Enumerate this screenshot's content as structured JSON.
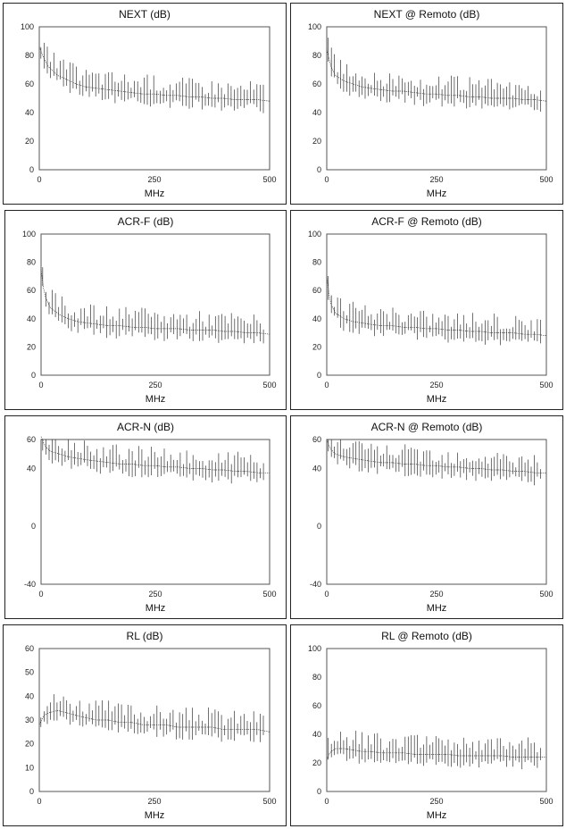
{
  "chart_data": [
    {
      "type": "line",
      "title": "NEXT (dB)",
      "xlabel": "MHz",
      "ylabel": "",
      "xlim": [
        0,
        500
      ],
      "ylim": [
        0,
        100
      ],
      "xticks": [
        "0",
        "250",
        "500"
      ],
      "yticks": [
        "0",
        "20",
        "40",
        "60",
        "80",
        "100"
      ],
      "series": [
        {
          "x": [
            0,
            5,
            10,
            20,
            40,
            60,
            80,
            100,
            125,
            150,
            175,
            200,
            225,
            250,
            275,
            300,
            325,
            350,
            375,
            400,
            425,
            450,
            475,
            500
          ],
          "y": [
            86,
            82,
            78,
            72,
            66,
            63,
            60,
            58,
            57,
            56,
            55,
            54,
            53,
            53,
            52,
            52,
            51,
            51,
            50,
            50,
            49,
            49,
            49,
            48
          ]
        }
      ]
    },
    {
      "type": "line",
      "title": "NEXT @ Remoto (dB)",
      "xlabel": "MHz",
      "ylabel": "",
      "xlim": [
        0,
        500
      ],
      "ylim": [
        0,
        100
      ],
      "xticks": [
        "0",
        "250",
        "500"
      ],
      "yticks": [
        "0",
        "20",
        "40",
        "60",
        "80",
        "100"
      ],
      "series": [
        {
          "x": [
            0,
            5,
            10,
            20,
            40,
            60,
            80,
            100,
            125,
            150,
            175,
            200,
            225,
            250,
            275,
            300,
            325,
            350,
            375,
            400,
            425,
            450,
            475,
            500
          ],
          "y": [
            84,
            78,
            72,
            66,
            62,
            60,
            58,
            57,
            56,
            55,
            55,
            54,
            53,
            53,
            52,
            52,
            51,
            51,
            50,
            50,
            50,
            49,
            49,
            48
          ]
        }
      ]
    },
    {
      "type": "line",
      "title": "ACR-F (dB)",
      "xlabel": "MHz",
      "ylabel": "",
      "xlim": [
        0,
        500
      ],
      "ylim": [
        0,
        100
      ],
      "xticks": [
        "0",
        "250",
        "500"
      ],
      "yticks": [
        "0",
        "20",
        "40",
        "60",
        "80",
        "100"
      ],
      "series": [
        {
          "x": [
            0,
            5,
            10,
            20,
            40,
            60,
            80,
            100,
            125,
            150,
            175,
            200,
            225,
            250,
            275,
            300,
            325,
            350,
            375,
            400,
            425,
            450,
            475,
            500
          ],
          "y": [
            75,
            62,
            55,
            48,
            43,
            40,
            38,
            37,
            36,
            35,
            35,
            34,
            34,
            33,
            33,
            33,
            32,
            32,
            32,
            31,
            31,
            30,
            30,
            29
          ]
        }
      ]
    },
    {
      "type": "line",
      "title": "ACR-F @ Remoto (dB)",
      "xlabel": "MHz",
      "ylabel": "",
      "xlim": [
        0,
        500
      ],
      "ylim": [
        0,
        100
      ],
      "xticks": [
        "0",
        "250",
        "500"
      ],
      "yticks": [
        "0",
        "20",
        "40",
        "60",
        "80",
        "100"
      ],
      "series": [
        {
          "x": [
            0,
            5,
            10,
            20,
            40,
            60,
            80,
            100,
            125,
            150,
            175,
            200,
            225,
            250,
            275,
            300,
            325,
            350,
            375,
            400,
            425,
            450,
            475,
            500
          ],
          "y": [
            70,
            58,
            50,
            44,
            40,
            38,
            37,
            36,
            35,
            35,
            34,
            34,
            33,
            33,
            32,
            32,
            31,
            31,
            30,
            30,
            30,
            29,
            29,
            28
          ]
        }
      ]
    },
    {
      "type": "line",
      "title": "ACR-N (dB)",
      "xlabel": "MHz",
      "ylabel": "",
      "xlim": [
        0,
        500
      ],
      "ylim": [
        -40,
        60
      ],
      "xticks": [
        "0",
        "250",
        "500"
      ],
      "yticks": [
        "-40",
        "0",
        "40",
        "60"
      ],
      "series": [
        {
          "x": [
            0,
            5,
            10,
            20,
            40,
            60,
            80,
            100,
            125,
            150,
            175,
            200,
            225,
            250,
            275,
            300,
            325,
            350,
            375,
            400,
            425,
            450,
            475,
            500
          ],
          "y": [
            62,
            58,
            55,
            52,
            50,
            48,
            47,
            46,
            45,
            44,
            43,
            43,
            42,
            42,
            41,
            41,
            40,
            40,
            39,
            39,
            38,
            38,
            37,
            37
          ]
        }
      ]
    },
    {
      "type": "line",
      "title": "ACR-N @ Remoto (dB)",
      "xlabel": "MHz",
      "ylabel": "",
      "xlim": [
        0,
        500
      ],
      "ylim": [
        -40,
        60
      ],
      "xticks": [
        "0",
        "250",
        "500"
      ],
      "yticks": [
        "-40",
        "0",
        "40",
        "60"
      ],
      "series": [
        {
          "x": [
            0,
            5,
            10,
            20,
            40,
            60,
            80,
            100,
            125,
            150,
            175,
            200,
            225,
            250,
            275,
            300,
            325,
            350,
            375,
            400,
            425,
            450,
            475,
            500
          ],
          "y": [
            60,
            56,
            53,
            50,
            48,
            47,
            46,
            45,
            44,
            44,
            43,
            43,
            42,
            42,
            41,
            41,
            40,
            40,
            39,
            39,
            38,
            38,
            37,
            37
          ]
        }
      ]
    },
    {
      "type": "line",
      "title": "RL (dB)",
      "xlabel": "MHz",
      "ylabel": "",
      "xlim": [
        0,
        500
      ],
      "ylim": [
        0,
        60
      ],
      "xticks": [
        "0",
        "250",
        "500"
      ],
      "yticks": [
        "0",
        "10",
        "20",
        "30",
        "40",
        "50",
        "60"
      ],
      "series": [
        {
          "x": [
            0,
            5,
            10,
            20,
            40,
            60,
            80,
            100,
            125,
            150,
            175,
            200,
            225,
            250,
            275,
            300,
            325,
            350,
            375,
            400,
            425,
            450,
            475,
            500
          ],
          "y": [
            28,
            30,
            32,
            33,
            34,
            33,
            32,
            31,
            30,
            30,
            29,
            29,
            28,
            28,
            28,
            27,
            27,
            27,
            27,
            26,
            26,
            26,
            26,
            25
          ]
        }
      ]
    },
    {
      "type": "line",
      "title": "RL @ Remoto (dB)",
      "xlabel": "MHz",
      "ylabel": "",
      "xlim": [
        0,
        500
      ],
      "ylim": [
        0,
        100
      ],
      "xticks": [
        "0",
        "250",
        "500"
      ],
      "yticks": [
        "0",
        "20",
        "40",
        "60",
        "80",
        "100"
      ],
      "series": [
        {
          "x": [
            0,
            5,
            10,
            20,
            40,
            60,
            80,
            100,
            125,
            150,
            175,
            200,
            225,
            250,
            275,
            300,
            325,
            350,
            375,
            400,
            425,
            450,
            475,
            500
          ],
          "y": [
            22,
            26,
            28,
            30,
            30,
            29,
            28,
            28,
            27,
            27,
            27,
            26,
            26,
            26,
            26,
            25,
            25,
            25,
            25,
            25,
            24,
            24,
            24,
            24
          ]
        }
      ]
    }
  ]
}
